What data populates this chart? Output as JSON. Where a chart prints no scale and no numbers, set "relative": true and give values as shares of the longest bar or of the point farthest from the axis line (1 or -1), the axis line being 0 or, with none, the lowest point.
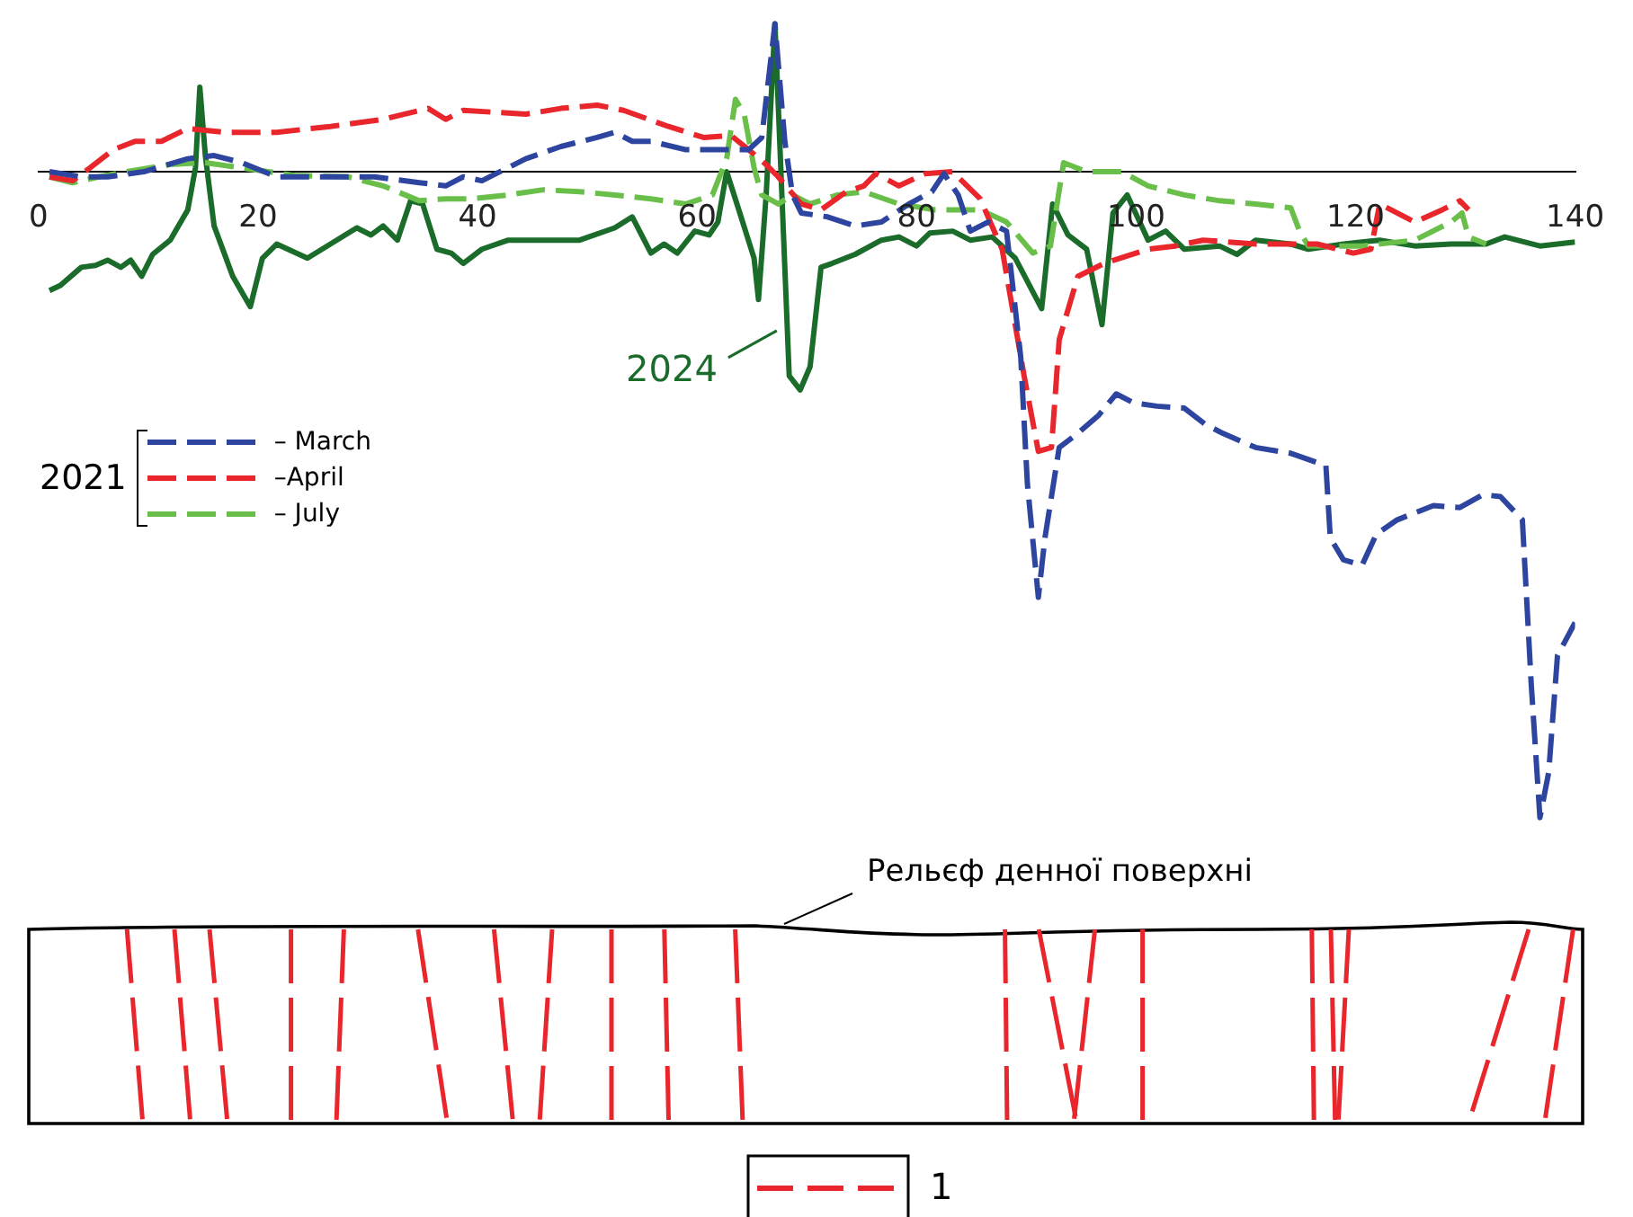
{
  "chart_data": {
    "type": "line",
    "relative": true,
    "legend": "left",
    "legend_title": "2021",
    "xlim": [
      0,
      140
    ],
    "xticks": [
      0,
      20,
      40,
      60,
      80,
      100,
      120,
      140
    ],
    "grid": false,
    "annotations": [
      "Рельєф денної поверхні",
      "1"
    ],
    "series": [
      {
        "name": "– March",
        "color": "#2e45a0",
        "line_style": "dashed",
        "x": [
          1,
          3.9,
          6.3,
          9.6,
          13.6,
          16,
          18.5,
          21.7,
          25.8,
          30.6,
          34.7,
          37.1,
          38.7,
          40.4,
          44.4,
          47.6,
          50.9,
          52.5,
          54.1,
          55.8,
          59,
          62.2,
          64.7,
          65.9,
          67.1,
          68,
          68.7,
          69.5,
          71.9,
          74.4,
          76.8,
          79.3,
          81.4,
          82.5,
          83.8,
          84.9,
          86.5,
          88.2,
          89.5,
          90.1,
          91.1,
          91.7,
          93,
          94.7,
          96.6,
          98.2,
          99.8,
          101.9,
          104.4,
          106.3,
          107.9,
          110.9,
          114.1,
          117.3,
          117.7,
          118.9,
          120.6,
          121.9,
          123.8,
          127.1,
          129.5,
          131.6,
          133.2,
          135.2,
          136,
          136.8,
          137.6,
          138.4,
          140
        ],
        "values": [
          0,
          -0.008,
          -0.008,
          0,
          0.02,
          0.025,
          0.014,
          -0.008,
          -0.008,
          -0.008,
          -0.017,
          -0.022,
          -0.008,
          -0.014,
          0.02,
          0.039,
          0.053,
          0.061,
          0.047,
          0.047,
          0.034,
          0.034,
          0.034,
          0.053,
          0.229,
          0.047,
          -0.036,
          -0.064,
          -0.07,
          -0.084,
          -0.078,
          -0.05,
          -0.031,
          -0.003,
          -0.036,
          -0.092,
          -0.078,
          -0.092,
          -0.288,
          -0.483,
          -0.659,
          -0.567,
          -0.427,
          -0.405,
          -0.377,
          -0.344,
          -0.358,
          -0.363,
          -0.366,
          -0.391,
          -0.405,
          -0.427,
          -0.436,
          -0.455,
          -0.567,
          -0.601,
          -0.609,
          -0.561,
          -0.539,
          -0.517,
          -0.52,
          -0.5,
          -0.503,
          -0.539,
          -0.791,
          -1,
          -0.93,
          -0.749,
          -0.698
        ]
      },
      {
        "name": "–April",
        "color": "#e8262b",
        "line_style": "dashed",
        "x": [
          1,
          3.1,
          4.7,
          6.8,
          8.8,
          11.2,
          13.6,
          16.9,
          21.7,
          26.6,
          31.4,
          35.5,
          37.1,
          38.7,
          44.4,
          47.6,
          50.9,
          53.3,
          57.4,
          60.6,
          63.1,
          64.7,
          66.3,
          67.4,
          69.5,
          71.3,
          73.6,
          75.2,
          76.3,
          78.4,
          80.8,
          83.3,
          85.8,
          87.8,
          89.8,
          91.1,
          92.3,
          93,
          94.7,
          97.1,
          101.1,
          103.6,
          106.1,
          110.9,
          116.5,
          119.8,
          121.4,
          122.2,
          125.4,
          127.9,
          129.5,
          130.3
        ],
        "values": [
          -0.008,
          -0.014,
          0.006,
          0.034,
          0.047,
          0.047,
          0.067,
          0.061,
          0.061,
          0.07,
          0.081,
          0.098,
          0.081,
          0.095,
          0.089,
          0.098,
          0.103,
          0.095,
          0.07,
          0.053,
          0.056,
          0.034,
          0.011,
          -0.008,
          -0.05,
          -0.059,
          -0.031,
          -0.022,
          -0.003,
          -0.022,
          -0.003,
          0,
          -0.042,
          -0.12,
          -0.316,
          -0.433,
          -0.427,
          -0.26,
          -0.162,
          -0.142,
          -0.12,
          -0.115,
          -0.106,
          -0.112,
          -0.112,
          -0.126,
          -0.12,
          -0.05,
          -0.078,
          -0.059,
          -0.045,
          -0.059
        ]
      },
      {
        "name": "– July",
        "color": "#6abf4b",
        "line_style": "dashed",
        "x": [
          1,
          3.1,
          5.5,
          8,
          12,
          15.2,
          18.5,
          23.3,
          28.2,
          31.4,
          34.7,
          37.1,
          39.5,
          42.8,
          46,
          49.3,
          52.5,
          55.8,
          59,
          61.4,
          62.7,
          63.5,
          64.3,
          65.2,
          65.9,
          67.4,
          68.7,
          70.3,
          72.8,
          75.2,
          78.4,
          81.7,
          85.8,
          88.2,
          90.6,
          92.2,
          93.4,
          95.5,
          98.7,
          101.1,
          104.4,
          107.6,
          110.9,
          114.1,
          114.9,
          115.7,
          120.6,
          125.4,
          128.7,
          129.7,
          130.3,
          131.9
        ],
        "values": [
          -0.008,
          -0.017,
          -0.008,
          0,
          0.011,
          0.014,
          0.006,
          -0.006,
          -0.008,
          -0.022,
          -0.045,
          -0.042,
          -0.042,
          -0.036,
          -0.028,
          -0.031,
          -0.036,
          -0.042,
          -0.05,
          -0.036,
          0.02,
          0.112,
          0.089,
          0.006,
          -0.036,
          -0.05,
          -0.036,
          -0.05,
          -0.036,
          -0.031,
          -0.05,
          -0.059,
          -0.059,
          -0.078,
          -0.126,
          -0.115,
          0.014,
          0,
          0,
          -0.022,
          -0.036,
          -0.045,
          -0.05,
          -0.056,
          -0.092,
          -0.115,
          -0.115,
          -0.106,
          -0.078,
          -0.064,
          -0.101,
          -0.112
        ]
      },
      {
        "name": "2024",
        "color": "#1b6b2b",
        "line_style": "solid",
        "x": [
          1,
          2,
          3.9,
          5.2,
          6.3,
          7.5,
          8.4,
          9.4,
          10.4,
          12,
          13.6,
          14.3,
          14.7,
          15.2,
          16,
          17.7,
          19.3,
          20.4,
          21.7,
          24.5,
          26.6,
          29,
          30.3,
          31.4,
          32.7,
          33.9,
          35,
          36.3,
          37.6,
          38.7,
          40.4,
          42.8,
          46,
          49.3,
          52.5,
          54.1,
          55.8,
          57,
          58.2,
          59.8,
          61.1,
          61.9,
          62.7,
          63.9,
          65.2,
          65.6,
          66.3,
          67.1,
          68,
          68.4,
          69.4,
          70.3,
          71.3,
          72.3,
          74.4,
          76.8,
          78.4,
          80,
          81.2,
          83.3,
          84.9,
          86.9,
          89,
          91.4,
          92.4,
          93.8,
          95.5,
          96.9,
          97.9,
          99.2,
          101.1,
          102.7,
          104.4,
          107.6,
          109.2,
          110.9,
          114.1,
          115.7,
          118.9,
          122.2,
          125.4,
          128.7,
          131.9,
          133.6,
          136.8,
          140
        ],
        "values": [
          -0.184,
          -0.176,
          -0.148,
          -0.145,
          -0.137,
          -0.148,
          -0.137,
          -0.162,
          -0.128,
          -0.106,
          -0.059,
          0.006,
          0.131,
          0.025,
          -0.084,
          -0.162,
          -0.209,
          -0.134,
          -0.112,
          -0.134,
          -0.112,
          -0.087,
          -0.098,
          -0.084,
          -0.106,
          -0.045,
          -0.05,
          -0.12,
          -0.126,
          -0.142,
          -0.12,
          -0.106,
          -0.106,
          -0.106,
          -0.087,
          -0.07,
          -0.126,
          -0.112,
          -0.126,
          -0.092,
          -0.098,
          -0.078,
          0,
          -0.064,
          -0.134,
          -0.198,
          -0.036,
          0.229,
          -0.148,
          -0.316,
          -0.338,
          -0.302,
          -0.148,
          -0.142,
          -0.128,
          -0.106,
          -0.101,
          -0.115,
          -0.095,
          -0.092,
          -0.106,
          -0.101,
          -0.134,
          -0.212,
          -0.05,
          -0.098,
          -0.12,
          -0.237,
          -0.064,
          -0.036,
          -0.106,
          -0.092,
          -0.12,
          -0.115,
          -0.128,
          -0.106,
          -0.112,
          -0.12,
          -0.112,
          -0.106,
          -0.115,
          -0.112,
          -0.112,
          -0.101,
          -0.115,
          -0.109
        ]
      }
    ]
  }
}
